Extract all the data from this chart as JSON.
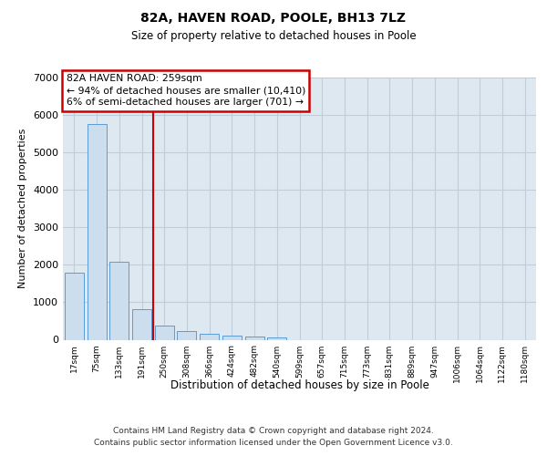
{
  "title": "82A, HAVEN ROAD, POOLE, BH13 7LZ",
  "subtitle": "Size of property relative to detached houses in Poole",
  "xlabel": "Distribution of detached houses by size in Poole",
  "ylabel": "Number of detached properties",
  "footnote1": "Contains HM Land Registry data © Crown copyright and database right 2024.",
  "footnote2": "Contains public sector information licensed under the Open Government Licence v3.0.",
  "annotation_title": "82A HAVEN ROAD: 259sqm",
  "annotation_line1": "← 94% of detached houses are smaller (10,410)",
  "annotation_line2": "6% of semi-detached houses are larger (701) →",
  "bar_color": "#ccdded",
  "bar_edge_color": "#5b9bd5",
  "vline_color": "#cc0000",
  "annotation_edge_color": "#cc0000",
  "grid_color": "#c0ccd8",
  "categories": [
    "17sqm",
    "75sqm",
    "133sqm",
    "191sqm",
    "250sqm",
    "308sqm",
    "366sqm",
    "424sqm",
    "482sqm",
    "540sqm",
    "599sqm",
    "657sqm",
    "715sqm",
    "773sqm",
    "831sqm",
    "889sqm",
    "947sqm",
    "1006sqm",
    "1064sqm",
    "1122sqm",
    "1180sqm"
  ],
  "values": [
    1800,
    5750,
    2070,
    820,
    380,
    240,
    170,
    120,
    90,
    55,
    0,
    0,
    0,
    0,
    0,
    0,
    0,
    0,
    0,
    0,
    0
  ],
  "ylim": [
    0,
    7000
  ],
  "yticks": [
    0,
    1000,
    2000,
    3000,
    4000,
    5000,
    6000,
    7000
  ],
  "vline_x": 3.5,
  "bg_color": "#dde8f0"
}
